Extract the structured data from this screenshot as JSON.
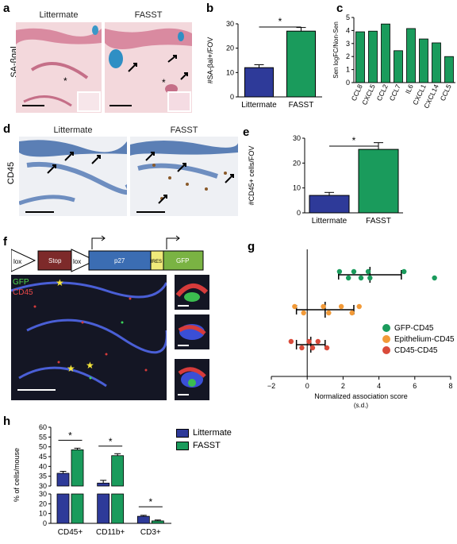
{
  "panel_labels": [
    "a",
    "b",
    "c",
    "d",
    "e",
    "f",
    "g",
    "h"
  ],
  "panel_a": {
    "side_label": "SA-βgal",
    "left_title": "Littermate",
    "right_title": "FASST"
  },
  "panel_d": {
    "side_label": "CD45",
    "left_title": "Littermate",
    "right_title": "FASST"
  },
  "panel_f": {
    "construct": [
      "lox",
      "Stop",
      "lox",
      "p27",
      "IRES",
      "GFP"
    ],
    "channel_labels": [
      "GFP",
      "CD45"
    ]
  },
  "colors": {
    "blue": "#2e3a99",
    "green": "#1a9b5c",
    "orange": "#f29a38",
    "red": "#d94a3a"
  },
  "chart_data": [
    {
      "id": "b",
      "type": "bar",
      "categories": [
        "Littermate",
        "FASST"
      ],
      "values": [
        12,
        27
      ],
      "errors": [
        1.2,
        1.5
      ],
      "ylabel": "#SA-βal+/FOV",
      "ylim": [
        0,
        30
      ],
      "yticks": [
        0,
        10,
        20,
        30
      ],
      "significance": "*"
    },
    {
      "id": "c",
      "type": "bar",
      "categories": [
        "CCL8",
        "CXCL5",
        "CCL2",
        "CCL7",
        "IL6",
        "CXCL1",
        "CXCL14",
        "CCL5"
      ],
      "values": [
        3.9,
        3.95,
        4.5,
        2.45,
        4.15,
        3.35,
        3.05,
        2.0
      ],
      "ylabel": "Sen logFC/Non-Sen",
      "ylim": [
        0,
        5
      ],
      "yticks": [
        0,
        1,
        2,
        3,
        4,
        5
      ]
    },
    {
      "id": "e",
      "type": "bar",
      "categories": [
        "Littermate",
        "FASST"
      ],
      "values": [
        7,
        25.5
      ],
      "errors": [
        1.2,
        2.7
      ],
      "ylabel": "#CD45+ cells/FOV",
      "ylim": [
        0,
        30
      ],
      "yticks": [
        0,
        10,
        20,
        30
      ],
      "significance": "*"
    },
    {
      "id": "g",
      "type": "scatter",
      "xlabel": "Normalized association score",
      "xlabel2": "(s.d.)",
      "xlim": [
        -2,
        8
      ],
      "xticks": [
        -2,
        0,
        2,
        4,
        6,
        8
      ],
      "series": [
        {
          "name": "GFP-CD45",
          "points": [
            1.8,
            2.3,
            2.6,
            3.0,
            3.4,
            3.5,
            5.4,
            7.1
          ],
          "mean": 3.5,
          "sd": 1.75
        },
        {
          "name": "Epithelium-CD45",
          "points": [
            -0.7,
            -0.2,
            0.9,
            1.2,
            1.9,
            2.5,
            2.9
          ],
          "mean": 1.0,
          "sd": 1.6
        },
        {
          "name": "CD45-CD45",
          "points": [
            -0.9,
            -0.3,
            0.1,
            0.3,
            0.6,
            1.1
          ],
          "mean": 0.2,
          "sd": 0.8
        }
      ]
    },
    {
      "id": "h",
      "type": "bar",
      "categories": [
        "CD45+",
        "CD11b+",
        "CD3+"
      ],
      "series": [
        {
          "name": "Littermate",
          "values": [
            36.5,
            31.5,
            7.2
          ],
          "errors": [
            0.6,
            1.0,
            0.2
          ]
        },
        {
          "name": "FASST",
          "values": [
            48.5,
            45.5,
            2.5
          ],
          "errors": [
            0.4,
            0.6,
            0.1
          ]
        }
      ],
      "ylabel": "% of cells/mouse",
      "yticks_upper": [
        30,
        35,
        40,
        45,
        50,
        55,
        60
      ],
      "yticks_lower": [
        0,
        10,
        20,
        30
      ],
      "significance": "*"
    }
  ]
}
